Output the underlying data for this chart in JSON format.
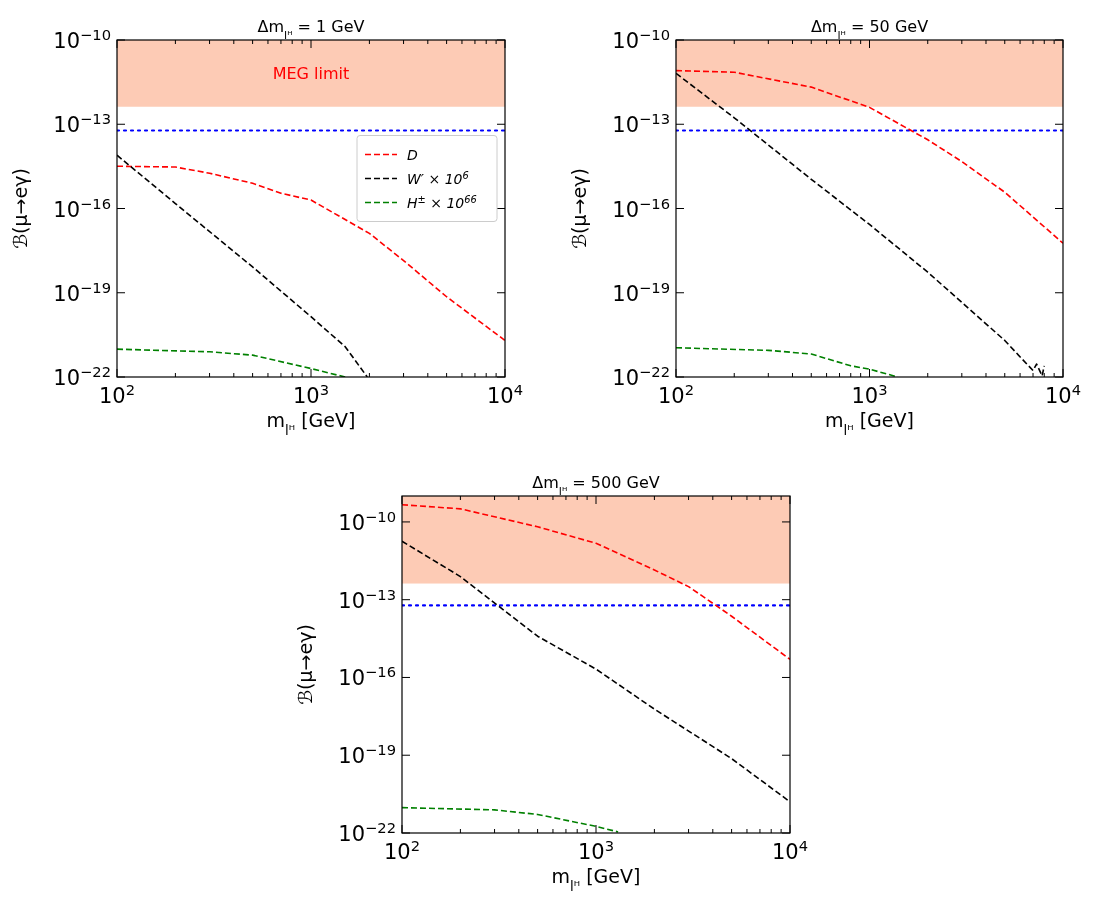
{
  "chart_data": [
    {
      "type": "line",
      "title": "Δm$_{lᴴ}$ = 1 GeV",
      "xlabel": "m$_{lᴴ}$ [GeV]",
      "ylabel": "ℬ(μ→eγ)",
      "log": "xy",
      "line_style": "dashed",
      "legend": "right",
      "grid": false,
      "xlim": [
        100,
        10000
      ],
      "ylim": [
        1e-22,
        1e-10
      ],
      "xticks": [
        {
          "value": 100,
          "label": "10$^{2}$"
        },
        {
          "value": 200,
          "label": null
        },
        {
          "value": 300,
          "label": null
        },
        {
          "value": 400,
          "label": null
        },
        {
          "value": 500,
          "label": null
        },
        {
          "value": 600,
          "label": null
        },
        {
          "value": 700,
          "label": null
        },
        {
          "value": 800,
          "label": null
        },
        {
          "value": 900,
          "label": null
        },
        {
          "value": 1000,
          "label": "10$^{3}$"
        },
        {
          "value": 2000,
          "label": null
        },
        {
          "value": 3000,
          "label": null
        },
        {
          "value": 4000,
          "label": null
        },
        {
          "value": 5000,
          "label": null
        },
        {
          "value": 6000,
          "label": null
        },
        {
          "value": 7000,
          "label": null
        },
        {
          "value": 8000,
          "label": null
        },
        {
          "value": 9000,
          "label": null
        },
        {
          "value": 10000,
          "label": "10$^{4}$"
        }
      ],
      "yticks": [
        {
          "value": 1e-22,
          "label": "10$^{−22}$"
        },
        {
          "value": 1e-19,
          "label": "10$^{−19}$"
        },
        {
          "value": 1e-16,
          "label": "10$^{−16}$"
        },
        {
          "value": 1e-13,
          "label": "10$^{−13}$"
        },
        {
          "value": 1e-10,
          "label": "10$^{−10}$"
        }
      ],
      "bands": [
        {
          "axis": "y",
          "from": 4.2e-13,
          "to": 1e-10,
          "label": "MEG limit",
          "color": "#fdcbb5"
        }
      ],
      "ref_lines": [
        {
          "axis": "y",
          "value": 6e-14,
          "color": "#0000ff",
          "line_style": "dotted"
        }
      ],
      "series": [
        {
          "name": "D",
          "color": "#ff0000",
          "x": [
            100,
            200,
            300,
            500,
            700,
            1000,
            2000,
            3000,
            5000,
            10000
          ],
          "values": [
            3.2e-15,
            3e-15,
            1.8e-15,
            7.9e-16,
            3.5e-16,
            2e-16,
            1.3e-17,
            1.4e-18,
            7.2e-20,
            2e-21
          ]
        },
        {
          "name": "W′ × 10$^{6}$",
          "color": "#000000",
          "x": [
            100,
            200,
            500,
            1000,
            1500,
            1950
          ],
          "values": [
            7.9e-15,
            1.5e-16,
            8.3e-19,
            1.4e-20,
            1.2e-21,
            1e-22
          ]
        },
        {
          "name": "H$^{±}$ × 10$^{66}$",
          "color": "#008000",
          "x": [
            100,
            300,
            500,
            1000,
            1500
          ],
          "values": [
            9.8e-22,
            7.9e-22,
            6e-22,
            2e-22,
            1e-22
          ]
        }
      ]
    },
    {
      "type": "line",
      "title": "Δm$_{lᴴ}$ = 50 GeV",
      "xlabel": "m$_{lᴴ}$ [GeV]",
      "ylabel": "ℬ(μ→eγ)",
      "log": "xy",
      "line_style": "dashed",
      "grid": false,
      "xlim": [
        100,
        10000
      ],
      "ylim": [
        1e-22,
        1e-10
      ],
      "xticks": [
        {
          "value": 100,
          "label": "10$^{2}$"
        },
        {
          "value": 200,
          "label": null
        },
        {
          "value": 300,
          "label": null
        },
        {
          "value": 400,
          "label": null
        },
        {
          "value": 500,
          "label": null
        },
        {
          "value": 600,
          "label": null
        },
        {
          "value": 700,
          "label": null
        },
        {
          "value": 800,
          "label": null
        },
        {
          "value": 900,
          "label": null
        },
        {
          "value": 1000,
          "label": "10$^{3}$"
        },
        {
          "value": 2000,
          "label": null
        },
        {
          "value": 3000,
          "label": null
        },
        {
          "value": 4000,
          "label": null
        },
        {
          "value": 5000,
          "label": null
        },
        {
          "value": 6000,
          "label": null
        },
        {
          "value": 7000,
          "label": null
        },
        {
          "value": 8000,
          "label": null
        },
        {
          "value": 9000,
          "label": null
        },
        {
          "value": 10000,
          "label": "10$^{4}$"
        }
      ],
      "yticks": [
        {
          "value": 1e-22,
          "label": "10$^{−22}$"
        },
        {
          "value": 1e-19,
          "label": "10$^{−19}$"
        },
        {
          "value": 1e-16,
          "label": "10$^{−16}$"
        },
        {
          "value": 1e-13,
          "label": "10$^{−13}$"
        },
        {
          "value": 1e-10,
          "label": "10$^{−10}$"
        }
      ],
      "bands": [
        {
          "axis": "y",
          "from": 4.2e-13,
          "to": 1e-10,
          "color": "#fdcbb5"
        }
      ],
      "ref_lines": [
        {
          "axis": "y",
          "value": 6e-14,
          "color": "#0000ff",
          "line_style": "dotted"
        }
      ],
      "series": [
        {
          "color": "#ff0000",
          "x": [
            100,
            200,
            500,
            1000,
            2000,
            3000,
            5000,
            10000
          ],
          "values": [
            8.1e-12,
            7.1e-12,
            2.1e-12,
            4e-13,
            2.8e-14,
            4.7e-15,
            3.8e-16,
            5.8e-18
          ]
        },
        {
          "color": "#000000",
          "x": [
            100,
            200,
            500,
            1000,
            2000,
            5000,
            6500,
            7000,
            7300,
            7800,
            8000
          ],
          "values": [
            6.5e-12,
            1.7e-13,
            1.1e-15,
            2.7e-17,
            5.4e-19,
            2e-21,
            2.9e-22,
            1.7e-22,
            2.9e-22,
            1.1e-22,
            2.5e-22
          ]
        },
        {
          "color": "#008000",
          "x": [
            100,
            300,
            500,
            800,
            1000,
            1400
          ],
          "values": [
            1.1e-21,
            8.9e-22,
            6.6e-22,
            2.5e-22,
            1.9e-22,
            1e-22
          ]
        }
      ]
    },
    {
      "type": "line",
      "title": "Δm$_{lᴴ}$ = 500 GeV",
      "xlabel": "m$_{lᴴ}$ [GeV]",
      "ylabel": "ℬ(μ→eγ)",
      "log": "xy",
      "line_style": "dashed",
      "grid": false,
      "xlim": [
        100,
        10000
      ],
      "ylim": [
        1e-22,
        1e-09
      ],
      "xticks": [
        {
          "value": 100,
          "label": "10$^{2}$"
        },
        {
          "value": 200,
          "label": null
        },
        {
          "value": 300,
          "label": null
        },
        {
          "value": 400,
          "label": null
        },
        {
          "value": 500,
          "label": null
        },
        {
          "value": 600,
          "label": null
        },
        {
          "value": 700,
          "label": null
        },
        {
          "value": 800,
          "label": null
        },
        {
          "value": 900,
          "label": null
        },
        {
          "value": 1000,
          "label": "10$^{3}$"
        },
        {
          "value": 2000,
          "label": null
        },
        {
          "value": 3000,
          "label": null
        },
        {
          "value": 4000,
          "label": null
        },
        {
          "value": 5000,
          "label": null
        },
        {
          "value": 6000,
          "label": null
        },
        {
          "value": 7000,
          "label": null
        },
        {
          "value": 8000,
          "label": null
        },
        {
          "value": 9000,
          "label": null
        },
        {
          "value": 10000,
          "label": "10$^{4}$"
        }
      ],
      "yticks": [
        {
          "value": 1e-22,
          "label": "10$^{−22}$"
        },
        {
          "value": 1e-19,
          "label": "10$^{−19}$"
        },
        {
          "value": 1e-16,
          "label": "10$^{−16}$"
        },
        {
          "value": 1e-13,
          "label": "10$^{−13}$"
        },
        {
          "value": 1e-10,
          "label": "10$^{−10}$"
        }
      ],
      "bands": [
        {
          "axis": "y",
          "from": 4.2e-13,
          "to": 1e-09,
          "color": "#fdcbb5"
        }
      ],
      "ref_lines": [
        {
          "axis": "y",
          "value": 6e-14,
          "color": "#0000ff",
          "line_style": "dotted"
        }
      ],
      "series": [
        {
          "color": "#ff0000",
          "x": [
            100,
            200,
            500,
            1000,
            2000,
            3000,
            5000,
            10000
          ],
          "values": [
            4.6e-10,
            3.2e-10,
            6.5e-11,
            1.5e-11,
            1.4e-12,
            3.2e-13,
            2.3e-14,
            5e-16
          ]
        },
        {
          "color": "#000000",
          "x": [
            100,
            200,
            500,
            1000,
            2000,
            5000,
            10000
          ],
          "values": [
            1.8e-11,
            7.8e-13,
            3.9e-15,
            2.1e-16,
            6e-18,
            7.4e-20,
            1.6e-21
          ]
        },
        {
          "color": "#008000",
          "x": [
            100,
            300,
            500,
            1000,
            1300
          ],
          "values": [
            9.5e-22,
            7.8e-22,
            5.2e-22,
            1.8e-22,
            1.1e-22
          ]
        }
      ]
    }
  ]
}
